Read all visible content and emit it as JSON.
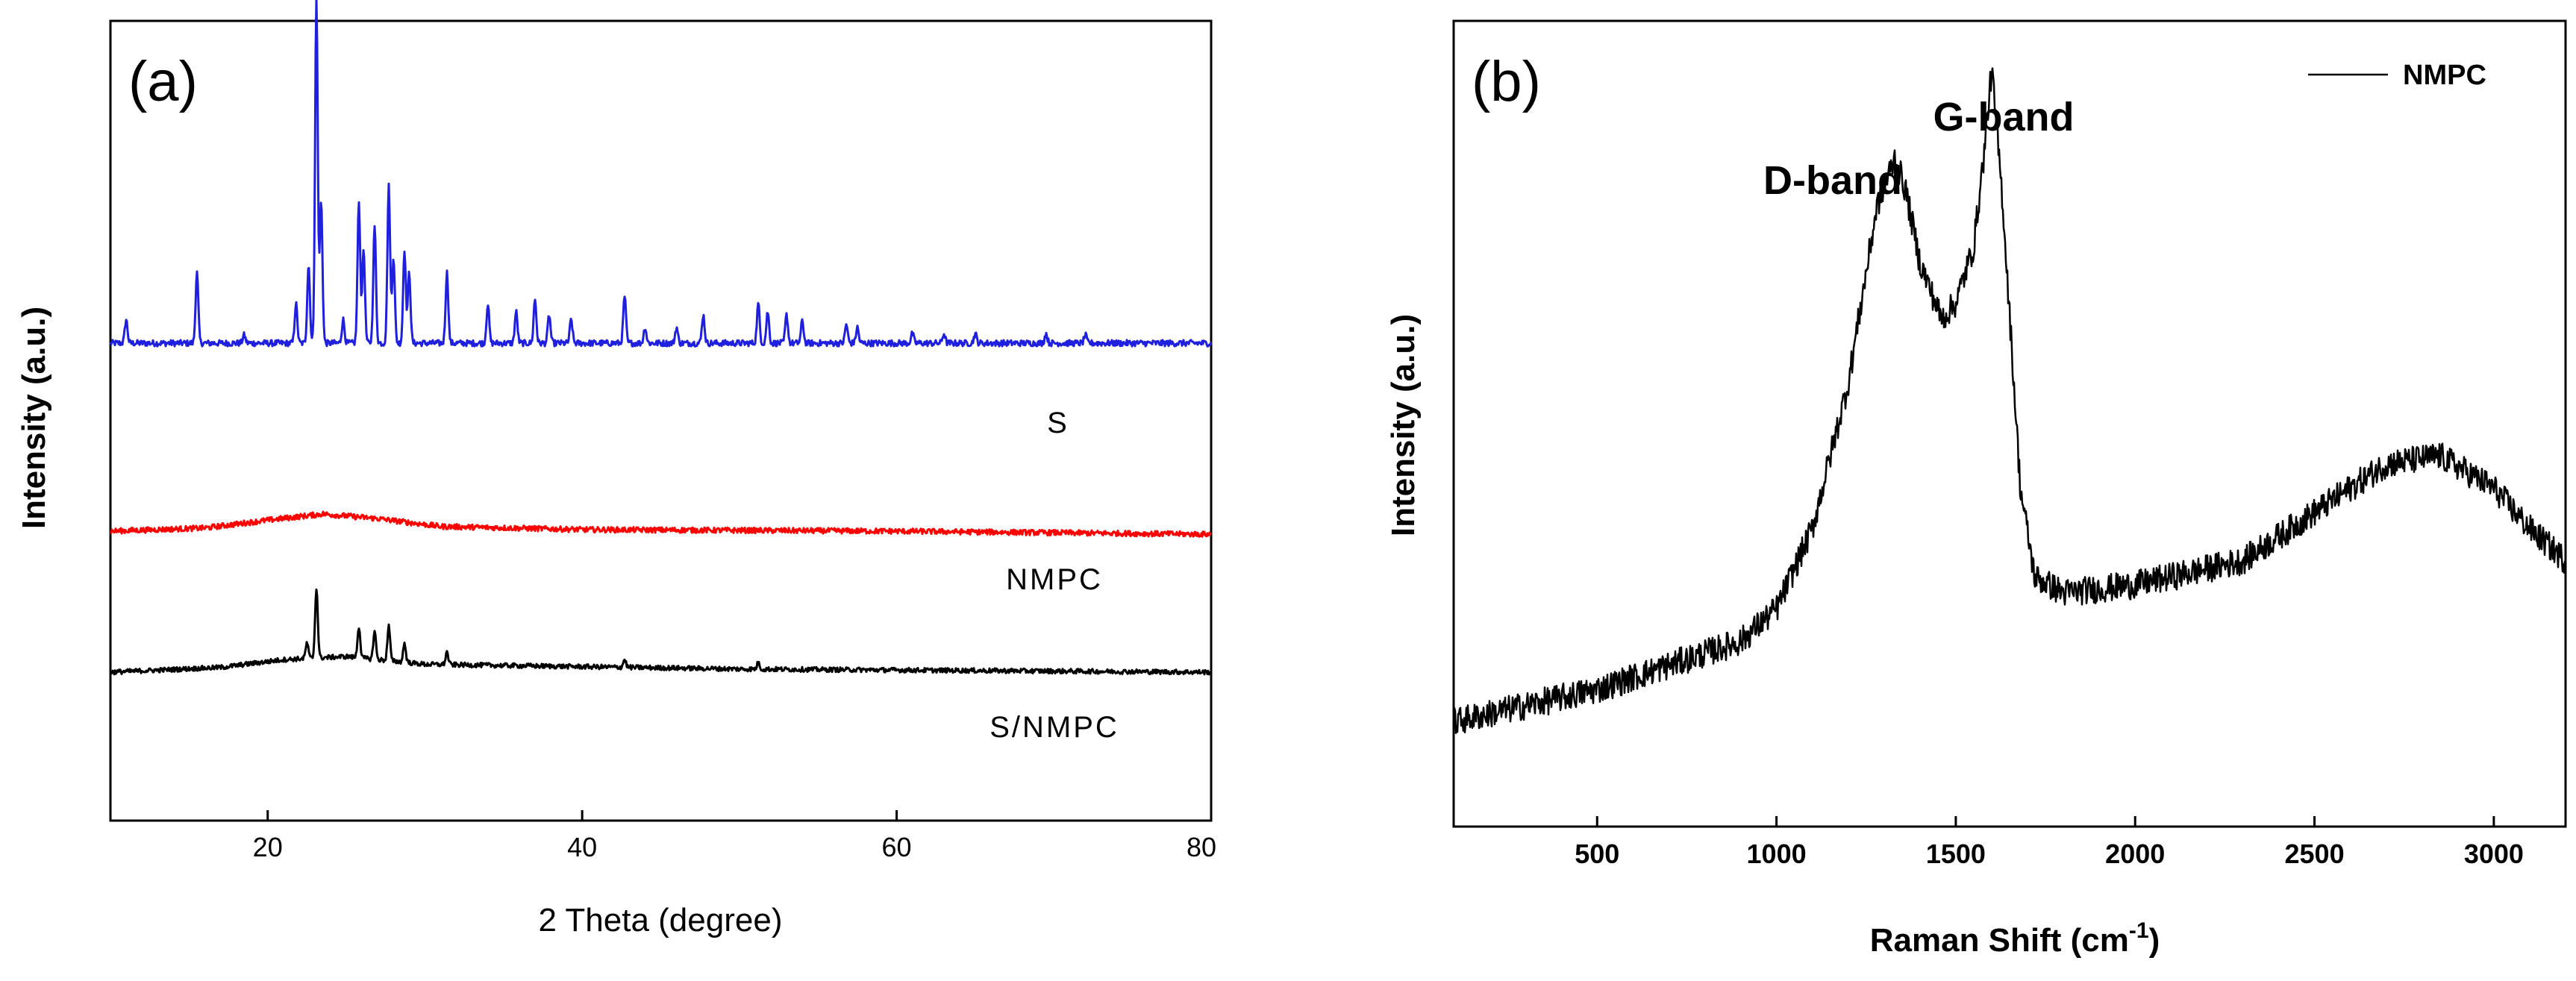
{
  "chart_data": [
    {
      "type": "line",
      "panel": "(a)",
      "xlabel": "2 Theta (degree)",
      "ylabel": "Intensity (a.u.)",
      "xlim": [
        10,
        80
      ],
      "xticks": [
        20,
        40,
        60,
        80
      ],
      "y_ticks_shown": false,
      "series": [
        {
          "name": "S",
          "color": "#1f1fe0",
          "offset": 2.0,
          "baseline_x": [
            10,
            30,
            50,
            80
          ],
          "baseline_y": [
            0.0,
            0.0,
            0.0,
            0.0
          ],
          "peaks": [
            [
              11.0,
              0.15
            ],
            [
              15.5,
              0.45
            ],
            [
              18.5,
              0.05
            ],
            [
              21.8,
              0.25
            ],
            [
              22.6,
              0.5
            ],
            [
              23.1,
              2.2
            ],
            [
              23.4,
              0.9
            ],
            [
              24.8,
              0.15
            ],
            [
              25.8,
              0.9
            ],
            [
              26.1,
              0.6
            ],
            [
              26.8,
              0.75
            ],
            [
              27.7,
              1.0
            ],
            [
              28.0,
              0.55
            ],
            [
              28.7,
              0.6
            ],
            [
              29.0,
              0.45
            ],
            [
              31.4,
              0.45
            ],
            [
              34.0,
              0.25
            ],
            [
              35.8,
              0.2
            ],
            [
              37.0,
              0.28
            ],
            [
              37.9,
              0.18
            ],
            [
              39.3,
              0.15
            ],
            [
              42.7,
              0.3
            ],
            [
              44.0,
              0.1
            ],
            [
              46.0,
              0.1
            ],
            [
              47.7,
              0.18
            ],
            [
              51.2,
              0.25
            ],
            [
              51.8,
              0.2
            ],
            [
              53.0,
              0.18
            ],
            [
              54.0,
              0.14
            ],
            [
              56.8,
              0.12
            ],
            [
              57.5,
              0.1
            ],
            [
              61.0,
              0.06
            ],
            [
              63.0,
              0.06
            ],
            [
              65.0,
              0.06
            ],
            [
              69.5,
              0.06
            ],
            [
              72.0,
              0.05
            ]
          ],
          "label_x": 70
        },
        {
          "name": "NMPC",
          "color": "#ff0000",
          "offset": 0.8,
          "baseline_x": [
            10,
            16,
            20,
            23.5,
            27,
            31,
            40,
            60,
            80
          ],
          "baseline_y": [
            0.0,
            0.02,
            0.07,
            0.11,
            0.08,
            0.03,
            0.01,
            0.0,
            -0.02
          ],
          "peaks": [],
          "label_x": 67
        },
        {
          "name": "S/NMPC",
          "color": "#000000",
          "offset": -0.1,
          "baseline_x": [
            10,
            17,
            21,
            25,
            30,
            50,
            80
          ],
          "baseline_y": [
            0.0,
            0.03,
            0.08,
            0.1,
            0.05,
            0.02,
            0.0
          ],
          "peaks": [
            [
              23.1,
              0.45
            ],
            [
              22.5,
              0.1
            ],
            [
              25.8,
              0.2
            ],
            [
              26.8,
              0.18
            ],
            [
              27.7,
              0.22
            ],
            [
              28.7,
              0.12
            ],
            [
              31.4,
              0.08
            ],
            [
              42.7,
              0.05
            ],
            [
              51.2,
              0.04
            ]
          ],
          "label_x": 67
        }
      ]
    },
    {
      "type": "line",
      "panel": "(b)",
      "xlabel": "Raman Shift (cm",
      "xlabel_sup": "-1",
      "xlabel_end": ")",
      "ylabel": "Intensity (a.u.)",
      "xlim": [
        100,
        3200
      ],
      "xticks": [
        500,
        1000,
        1500,
        2000,
        2500,
        3000
      ],
      "y_ticks_shown": false,
      "legend": "NMPC",
      "annotations": [
        {
          "text": "D-band",
          "x": 1340,
          "y": 0.95
        },
        {
          "text": "G-band",
          "x": 1600,
          "y": 1.08
        }
      ],
      "series": [
        {
          "name": "NMPC",
          "color": "#000000",
          "x": [
            100,
            500,
            900,
            1000,
            1100,
            1200,
            1280,
            1330,
            1360,
            1400,
            1460,
            1500,
            1550,
            1580,
            1600,
            1630,
            1680,
            1720,
            1800,
            2000,
            2300,
            2500,
            2700,
            2850,
            3000,
            3100,
            3200
          ],
          "y": [
            0.13,
            0.17,
            0.23,
            0.27,
            0.37,
            0.55,
            0.77,
            0.83,
            0.79,
            0.7,
            0.63,
            0.65,
            0.72,
            0.84,
            0.94,
            0.78,
            0.42,
            0.31,
            0.29,
            0.3,
            0.33,
            0.39,
            0.45,
            0.46,
            0.42,
            0.37,
            0.33
          ]
        }
      ]
    }
  ]
}
